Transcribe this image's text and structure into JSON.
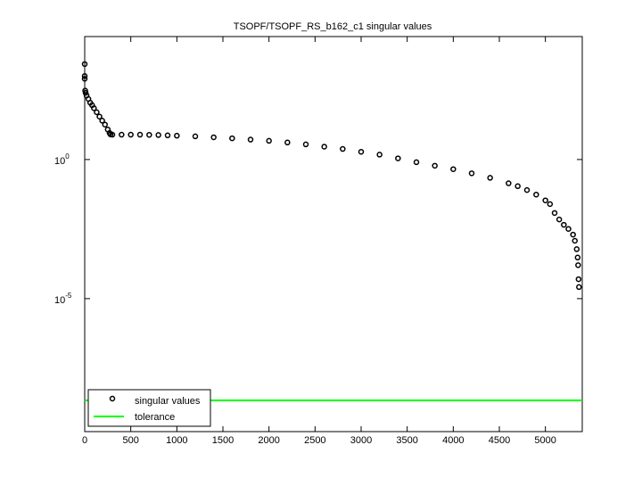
{
  "chart_data": {
    "type": "scatter",
    "title": "TSOPF/TSOPF_RS_b162_c1 singular values",
    "log_y": true,
    "xlim": [
      0,
      5400
    ],
    "ylim": [
      1.66e-10,
      26300
    ],
    "xticks": [
      0,
      500,
      1000,
      1500,
      2000,
      2500,
      3000,
      3500,
      4000,
      4500,
      5000
    ],
    "yticks": [
      {
        "value": 1,
        "label": "10",
        "exponent": "0"
      },
      {
        "value": 1e-05,
        "label": "10",
        "exponent": "-5"
      }
    ],
    "legend": "lower left",
    "series": [
      {
        "name": "singular values",
        "color": "#000000",
        "marker": "circle",
        "x": [
          0,
          0,
          0,
          5,
          10,
          20,
          40,
          60,
          80,
          100,
          130,
          160,
          190,
          220,
          250,
          270,
          280,
          300,
          400,
          500,
          600,
          700,
          800,
          900,
          1000,
          1200,
          1400,
          1600,
          1800,
          2000,
          2200,
          2400,
          2600,
          2800,
          3000,
          3200,
          3400,
          3600,
          3800,
          4000,
          4200,
          4400,
          4600,
          4700,
          4800,
          4900,
          5000,
          5050,
          5100,
          5150,
          5200,
          5250,
          5300,
          5320,
          5340,
          5350,
          5355,
          5360,
          5364
        ],
        "values": [
          2700,
          1000,
          800,
          300,
          250,
          200,
          150,
          110,
          90,
          70,
          50,
          35,
          25,
          18,
          12,
          9,
          8,
          7.8,
          7.8,
          7.8,
          7.8,
          7.7,
          7.6,
          7.4,
          7.2,
          6.8,
          6.3,
          5.8,
          5.2,
          4.7,
          4.1,
          3.5,
          2.9,
          2.4,
          1.9,
          1.5,
          1.1,
          0.8,
          0.6,
          0.45,
          0.32,
          0.22,
          0.14,
          0.11,
          0.08,
          0.055,
          0.034,
          0.025,
          0.012,
          0.007,
          0.0045,
          0.0032,
          0.002,
          0.0012,
          0.0006,
          0.0003,
          0.00016,
          5e-05,
          2.6e-05
        ]
      },
      {
        "name": "tolerance",
        "color": "#00ff00",
        "marker": "line",
        "x": [
          0,
          5400
        ],
        "values": [
          2.2e-09,
          2.2e-09
        ]
      }
    ]
  }
}
